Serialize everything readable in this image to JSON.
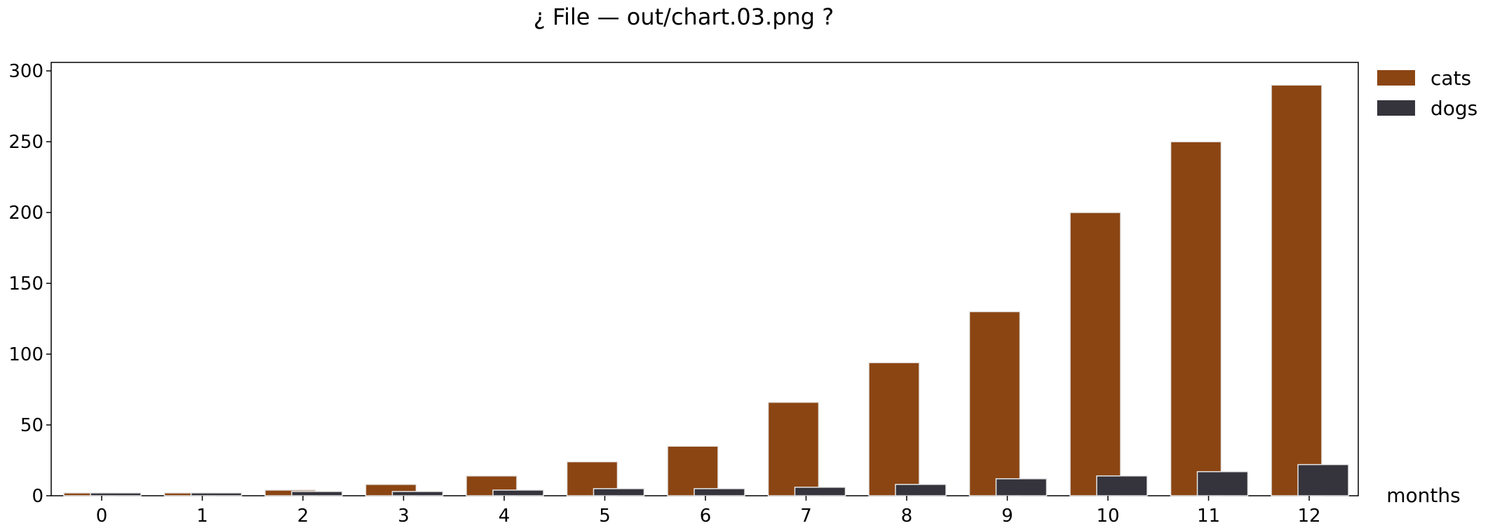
{
  "chart_data": {
    "type": "bar",
    "title": "¿ File — out/chart.03.png ?",
    "xlabel": "months",
    "ylabel": "",
    "ylim": [
      0,
      306
    ],
    "yticks": [
      0,
      50,
      100,
      150,
      200,
      250,
      300
    ],
    "categories": [
      "0",
      "1",
      "2",
      "3",
      "4",
      "5",
      "6",
      "7",
      "8",
      "9",
      "10",
      "11",
      "12"
    ],
    "series": [
      {
        "name": "cats",
        "color": "#8B4513",
        "values": [
          2,
          2,
          4,
          8,
          14,
          24,
          35,
          66,
          94,
          130,
          200,
          250,
          290
        ]
      },
      {
        "name": "dogs",
        "color": "#35333B",
        "values": [
          2,
          2,
          3,
          3,
          4,
          5,
          5,
          6,
          8,
          12,
          14,
          17,
          22
        ]
      }
    ],
    "legend_position": "top-right, outside plot",
    "grid": false
  }
}
